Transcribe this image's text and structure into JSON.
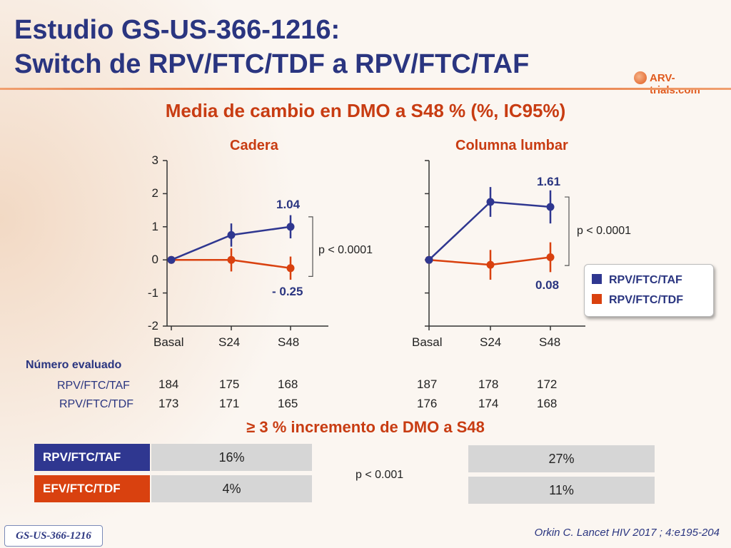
{
  "header": {
    "title_line1": "Estudio GS-US-366-1216:",
    "title_line2": "Switch de RPV/FTC/TDF a RPV/FTC/TAF",
    "logo_text": "ARV-trials.com"
  },
  "subtitle": "Media de cambio en DMO a S48  % (%, IC95%)",
  "colors": {
    "taf": "#2f3790",
    "tdf": "#d9410f",
    "title": "#2a3580",
    "accent": "#c83c12"
  },
  "chart_data": [
    {
      "type": "line",
      "title": "Cadera",
      "categories": [
        "Basal",
        "S24",
        "S48"
      ],
      "ylim": [
        -2,
        3
      ],
      "yticks": [
        "3",
        "2",
        "1",
        "0",
        "-1",
        "-2"
      ],
      "series": [
        {
          "name": "RPV/FTC/TAF",
          "values": [
            0,
            0.75,
            1.0
          ],
          "err": [
            0,
            0.35,
            0.35
          ]
        },
        {
          "name": "RPV/FTC/TDF",
          "values": [
            0,
            0,
            -0.25
          ],
          "err": [
            0,
            0.35,
            0.35
          ]
        }
      ],
      "label_taf": "1.04",
      "label_tdf": "- 0.25",
      "pvalue": "p < 0.0001"
    },
    {
      "type": "line",
      "title": "Columna lumbar",
      "categories": [
        "Basal",
        "S24",
        "S48"
      ],
      "ylim": [
        -2,
        3
      ],
      "series": [
        {
          "name": "RPV/FTC/TAF",
          "values": [
            0,
            1.75,
            1.6
          ],
          "err": [
            0,
            0.45,
            0.5
          ]
        },
        {
          "name": "RPV/FTC/TDF",
          "values": [
            0,
            -0.15,
            0.08
          ],
          "err": [
            0,
            0.45,
            0.45
          ]
        }
      ],
      "label_taf": "1.61",
      "label_tdf": "0.08",
      "pvalue": "p < 0.0001"
    }
  ],
  "legend": {
    "taf": "RPV/FTC/TAF",
    "tdf": "RPV/FTC/TDF"
  },
  "numbers": {
    "header": "Número evaluado",
    "taf_label": "RPV/FTC/TAF",
    "tdf_label": "RPV/FTC/TDF",
    "cadera_taf": [
      "184",
      "175",
      "168"
    ],
    "cadera_tdf": [
      "173",
      "171",
      "165"
    ],
    "lumbar_taf": [
      "187",
      "178",
      "172"
    ],
    "lumbar_tdf": [
      "176",
      "174",
      "168"
    ]
  },
  "increment": {
    "title": "≥ 3 % incremento de DMO a S48",
    "row1_label": "RPV/FTC/TAF",
    "row2_label": "EFV/FTC/TDF",
    "cadera": [
      "16%",
      "4%"
    ],
    "lumbar": [
      "27%",
      "11%"
    ],
    "pvalue": "p < 0.001"
  },
  "footer": {
    "badge": "GS-US-366-1216",
    "citation": "Orkin C. Lancet HIV 2017 ; 4:e195-204"
  }
}
